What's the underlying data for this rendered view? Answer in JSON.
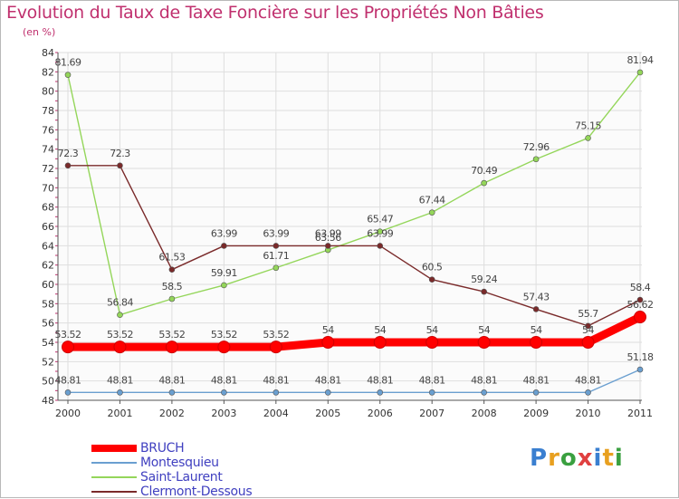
{
  "title": "Evolution du Taux de Taxe Foncière sur les Propriétés Non Bâties",
  "subtitle": "(en %)",
  "logo_text": "Proxiti",
  "chart_data": {
    "type": "line",
    "x": [
      "2000",
      "2001",
      "2002",
      "2003",
      "2004",
      "2005",
      "2006",
      "2007",
      "2008",
      "2009",
      "2010",
      "2011"
    ],
    "ylim": [
      48,
      84
    ],
    "yticks": [
      48,
      50,
      52,
      54,
      56,
      58,
      60,
      62,
      64,
      66,
      68,
      70,
      72,
      74,
      76,
      78,
      80,
      82,
      84
    ],
    "grid": true,
    "legend_placement": "bottom-left",
    "series": [
      {
        "name": "BRUCH",
        "color": "#ff0000",
        "labels": [
          "53.52",
          "53.52",
          "53.52",
          "53.52",
          "53.52",
          "54",
          "54",
          "54",
          "54",
          "54",
          "54",
          "56.62"
        ],
        "values": [
          53.52,
          53.52,
          53.52,
          53.52,
          53.52,
          54,
          54,
          54,
          54,
          54,
          54,
          56.62
        ]
      },
      {
        "name": "Montesquieu",
        "color": "#6a9fd0",
        "labels": [
          "48.81",
          "48.81",
          "48.81",
          "48.81",
          "48.81",
          "48.81",
          "48.81",
          "48.81",
          "48.81",
          "48.81",
          "48.81",
          "51.18"
        ],
        "values": [
          48.81,
          48.81,
          48.81,
          48.81,
          48.81,
          48.81,
          48.81,
          48.81,
          48.81,
          48.81,
          48.81,
          51.18
        ]
      },
      {
        "name": "Saint-Laurent",
        "color": "#94d65a",
        "labels": [
          "81.69",
          "56.84",
          "58.5",
          "59.91",
          "61.71",
          "63.56",
          "65.47",
          "67.44",
          "70.49",
          "72.96",
          "75.15",
          "81.94"
        ],
        "values": [
          81.69,
          56.84,
          58.5,
          59.91,
          61.71,
          63.56,
          65.47,
          67.44,
          70.49,
          72.96,
          75.15,
          81.94
        ]
      },
      {
        "name": "Clermont-Dessous",
        "color": "#7a2a2a",
        "labels": [
          "72.3",
          "72.3",
          "61.53",
          "63.99",
          "63.99",
          "63.99",
          "63.99",
          "60.5",
          "59.24",
          "57.43",
          "55.7",
          "58.4"
        ],
        "values": [
          72.3,
          72.3,
          61.53,
          63.99,
          63.99,
          63.99,
          63.99,
          60.5,
          59.24,
          57.43,
          55.7,
          58.4
        ]
      }
    ]
  }
}
